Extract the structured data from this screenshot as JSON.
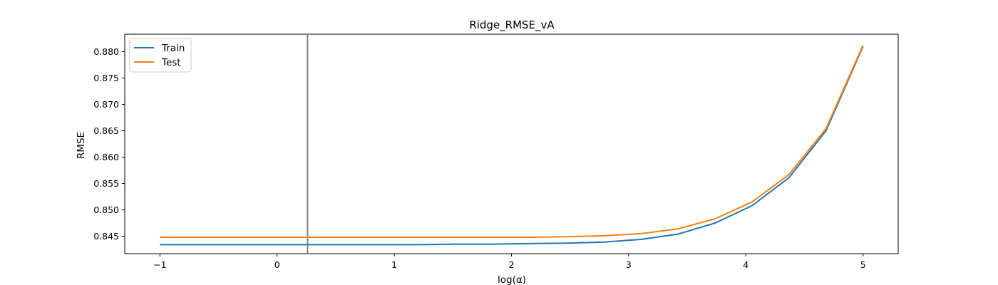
{
  "chart_data": {
    "type": "line",
    "title": "Ridge_RMSE_vA",
    "xlabel": "log(α)",
    "ylabel": "RMSE",
    "xlim": [
      -1.3,
      5.3
    ],
    "ylim": [
      0.8417,
      0.8833
    ],
    "xticks": [
      -1,
      0,
      1,
      2,
      3,
      4,
      5
    ],
    "xtick_labels": [
      "−1",
      "0",
      "1",
      "2",
      "3",
      "4",
      "5"
    ],
    "yticks": [
      0.845,
      0.85,
      0.855,
      0.86,
      0.865,
      0.87,
      0.875,
      0.88
    ],
    "ytick_labels": [
      "0.845",
      "0.850",
      "0.855",
      "0.860",
      "0.865",
      "0.870",
      "0.875",
      "0.880"
    ],
    "grid": false,
    "legend": "top-left",
    "vline_x": 0.26,
    "x": [
      -1.0,
      -0.684,
      -0.368,
      -0.053,
      0.263,
      0.579,
      0.895,
      1.211,
      1.526,
      1.842,
      2.158,
      2.474,
      2.789,
      3.105,
      3.421,
      3.737,
      4.053,
      4.368,
      4.684,
      5.0
    ],
    "series": [
      {
        "name": "Train",
        "color": "#1f77b4",
        "values": [
          0.8434,
          0.8434,
          0.8434,
          0.8434,
          0.8434,
          0.8434,
          0.8434,
          0.8434,
          0.8435,
          0.8435,
          0.8436,
          0.8437,
          0.8439,
          0.8444,
          0.8454,
          0.8475,
          0.8508,
          0.8561,
          0.865,
          0.881
        ]
      },
      {
        "name": "Test",
        "color": "#ff7f0e",
        "values": [
          0.8448,
          0.8448,
          0.8448,
          0.8448,
          0.8448,
          0.8448,
          0.8448,
          0.8448,
          0.8448,
          0.8448,
          0.8448,
          0.8449,
          0.8451,
          0.8455,
          0.8464,
          0.8483,
          0.8515,
          0.8567,
          0.8654,
          0.8812
        ]
      }
    ],
    "colors": {
      "vline": "#808080",
      "axes": "#000000",
      "legend_border": "#cccccc"
    }
  }
}
